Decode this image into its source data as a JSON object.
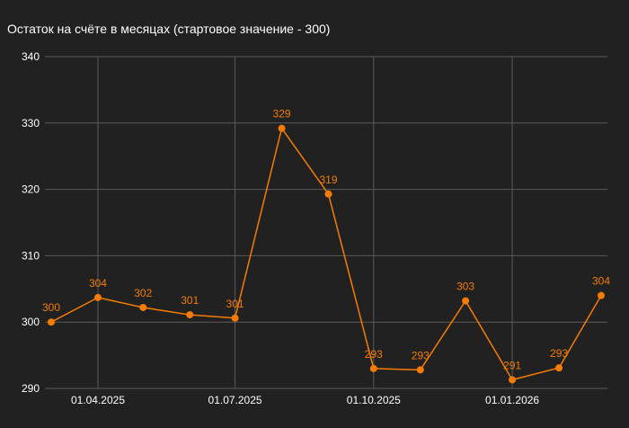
{
  "chart_data": {
    "type": "line",
    "title": "Остаток на счёте в месяцах (стартовое значение - 300)",
    "xlabel": "",
    "ylabel": "",
    "x": [
      "2025-03-01",
      "2025-04-01",
      "2025-05-01",
      "2025-06-01",
      "2025-07-01",
      "2025-08-01",
      "2025-09-01",
      "2025-10-01",
      "2025-11-01",
      "2025-12-01",
      "2026-01-01",
      "2026-02-01",
      "2026-03-01"
    ],
    "series": [
      {
        "values": [
          300,
          303.7,
          302.2,
          301.1,
          300.6,
          329.2,
          319.3,
          293.0,
          292.8,
          303.2,
          291.3,
          293.1,
          304.0
        ],
        "labels": [
          "300",
          "304",
          "302",
          "301",
          "301",
          "329",
          "319",
          "293",
          "293",
          "303",
          "291",
          "293",
          "304"
        ],
        "color": "#f57c00"
      }
    ],
    "ylim": [
      290,
      340
    ],
    "yticks": [
      "290",
      "300",
      "310",
      "320",
      "330",
      "340"
    ],
    "xticks": [
      {
        "date": "2025-04-01",
        "label": "01.04.2025"
      },
      {
        "date": "2025-07-01",
        "label": "01.07.2025"
      },
      {
        "date": "2025-10-01",
        "label": "01.10.2025"
      },
      {
        "date": "2026-01-01",
        "label": "01.01.2026"
      }
    ],
    "grid": true,
    "background": "#212121",
    "line_color": "#f57c00"
  }
}
